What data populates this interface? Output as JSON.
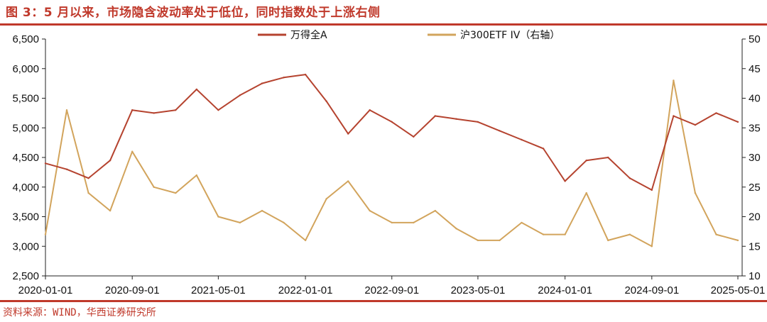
{
  "page": {
    "title": "图 3：5 月以来，市场隐含波动率处于低位，同时指数处于上涨右侧",
    "source": "资料来源：WIND，华西证券研究所"
  },
  "chart_data": {
    "type": "line",
    "title": "",
    "xlabel": "",
    "ylabel_left": "",
    "ylabel_right": "",
    "x_tick_labels": [
      "2020-01-01",
      "2020-09-01",
      "2021-05-01",
      "2022-01-01",
      "2022-09-01",
      "2023-05-01",
      "2024-01-01",
      "2024-09-01",
      "2025-05-01"
    ],
    "ylim_left": [
      2500,
      6500
    ],
    "yticks_left": [
      "2,500",
      "3,000",
      "3,500",
      "4,000",
      "4,500",
      "5,000",
      "5,500",
      "6,000",
      "6,500"
    ],
    "ylim_right": [
      10,
      50
    ],
    "yticks_right": [
      "10",
      "15",
      "20",
      "25",
      "30",
      "35",
      "40",
      "45",
      "50"
    ],
    "grid": false,
    "legend_position": "top-center",
    "colors": {
      "series1": "#b5432f",
      "series2": "#d2a45c",
      "accent": "#c0392b"
    },
    "x": [
      "2020-01",
      "2020-03",
      "2020-05",
      "2020-07",
      "2020-09",
      "2020-11",
      "2021-01",
      "2021-03",
      "2021-05",
      "2021-07",
      "2021-09",
      "2021-11",
      "2022-01",
      "2022-03",
      "2022-05",
      "2022-07",
      "2022-09",
      "2022-11",
      "2023-01",
      "2023-03",
      "2023-05",
      "2023-07",
      "2023-09",
      "2023-11",
      "2024-01",
      "2024-03",
      "2024-05",
      "2024-07",
      "2024-09",
      "2024-11",
      "2025-01",
      "2025-03",
      "2025-05"
    ],
    "series": [
      {
        "name": "万得全A",
        "axis": "left",
        "values": [
          4400,
          4300,
          4150,
          4450,
          5300,
          5250,
          5300,
          5650,
          5300,
          5550,
          5750,
          5850,
          5900,
          5450,
          4900,
          5300,
          5100,
          4850,
          5200,
          5150,
          5100,
          4950,
          4800,
          4650,
          4100,
          4450,
          4500,
          4150,
          3950,
          5200,
          5050,
          5250,
          5100
        ]
      },
      {
        "name": "沪300ETF IV（右轴）",
        "axis": "right",
        "values": [
          17,
          38,
          24,
          21,
          31,
          25,
          24,
          27,
          20,
          19,
          21,
          19,
          16,
          23,
          26,
          21,
          19,
          19,
          21,
          18,
          16,
          16,
          19,
          17,
          17,
          24,
          16,
          17,
          15,
          43,
          24,
          17,
          16
        ]
      }
    ]
  }
}
